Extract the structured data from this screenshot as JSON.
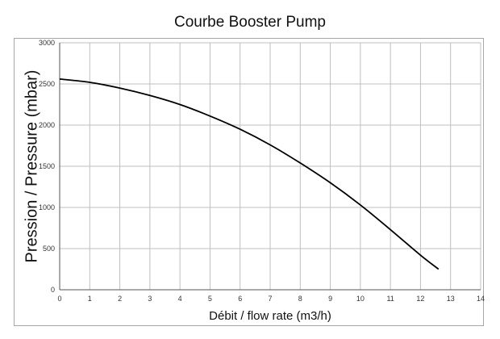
{
  "chart_data": {
    "type": "line",
    "title": "Courbe Booster Pump",
    "xlabel": "Débit / flow rate (m3/h)",
    "ylabel": "Pression / Pressure (mbar)",
    "xlim": [
      0,
      14
    ],
    "ylim": [
      0,
      3000
    ],
    "xticks": [
      0,
      1,
      2,
      3,
      4,
      5,
      6,
      7,
      8,
      9,
      10,
      11,
      12,
      13,
      14
    ],
    "yticks": [
      0,
      500,
      1000,
      1500,
      2000,
      2500,
      3000
    ],
    "grid": true,
    "series": [
      {
        "x": [
          0,
          1,
          2,
          3,
          4,
          5,
          6,
          7,
          8,
          9,
          10,
          11,
          12,
          12.6
        ],
        "y": [
          2560,
          2520,
          2450,
          2360,
          2250,
          2110,
          1950,
          1760,
          1540,
          1300,
          1030,
          730,
          420,
          250
        ],
        "color": "#000000"
      }
    ]
  }
}
